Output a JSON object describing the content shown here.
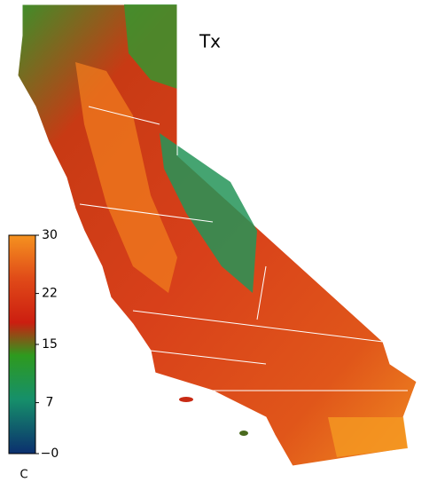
{
  "title": "Tx",
  "colorbar": {
    "unit": "C",
    "range": [
      0,
      30
    ],
    "ticks": [
      30,
      22,
      15,
      7,
      {
        "value": 0,
        "label": "−0"
      }
    ]
  }
}
